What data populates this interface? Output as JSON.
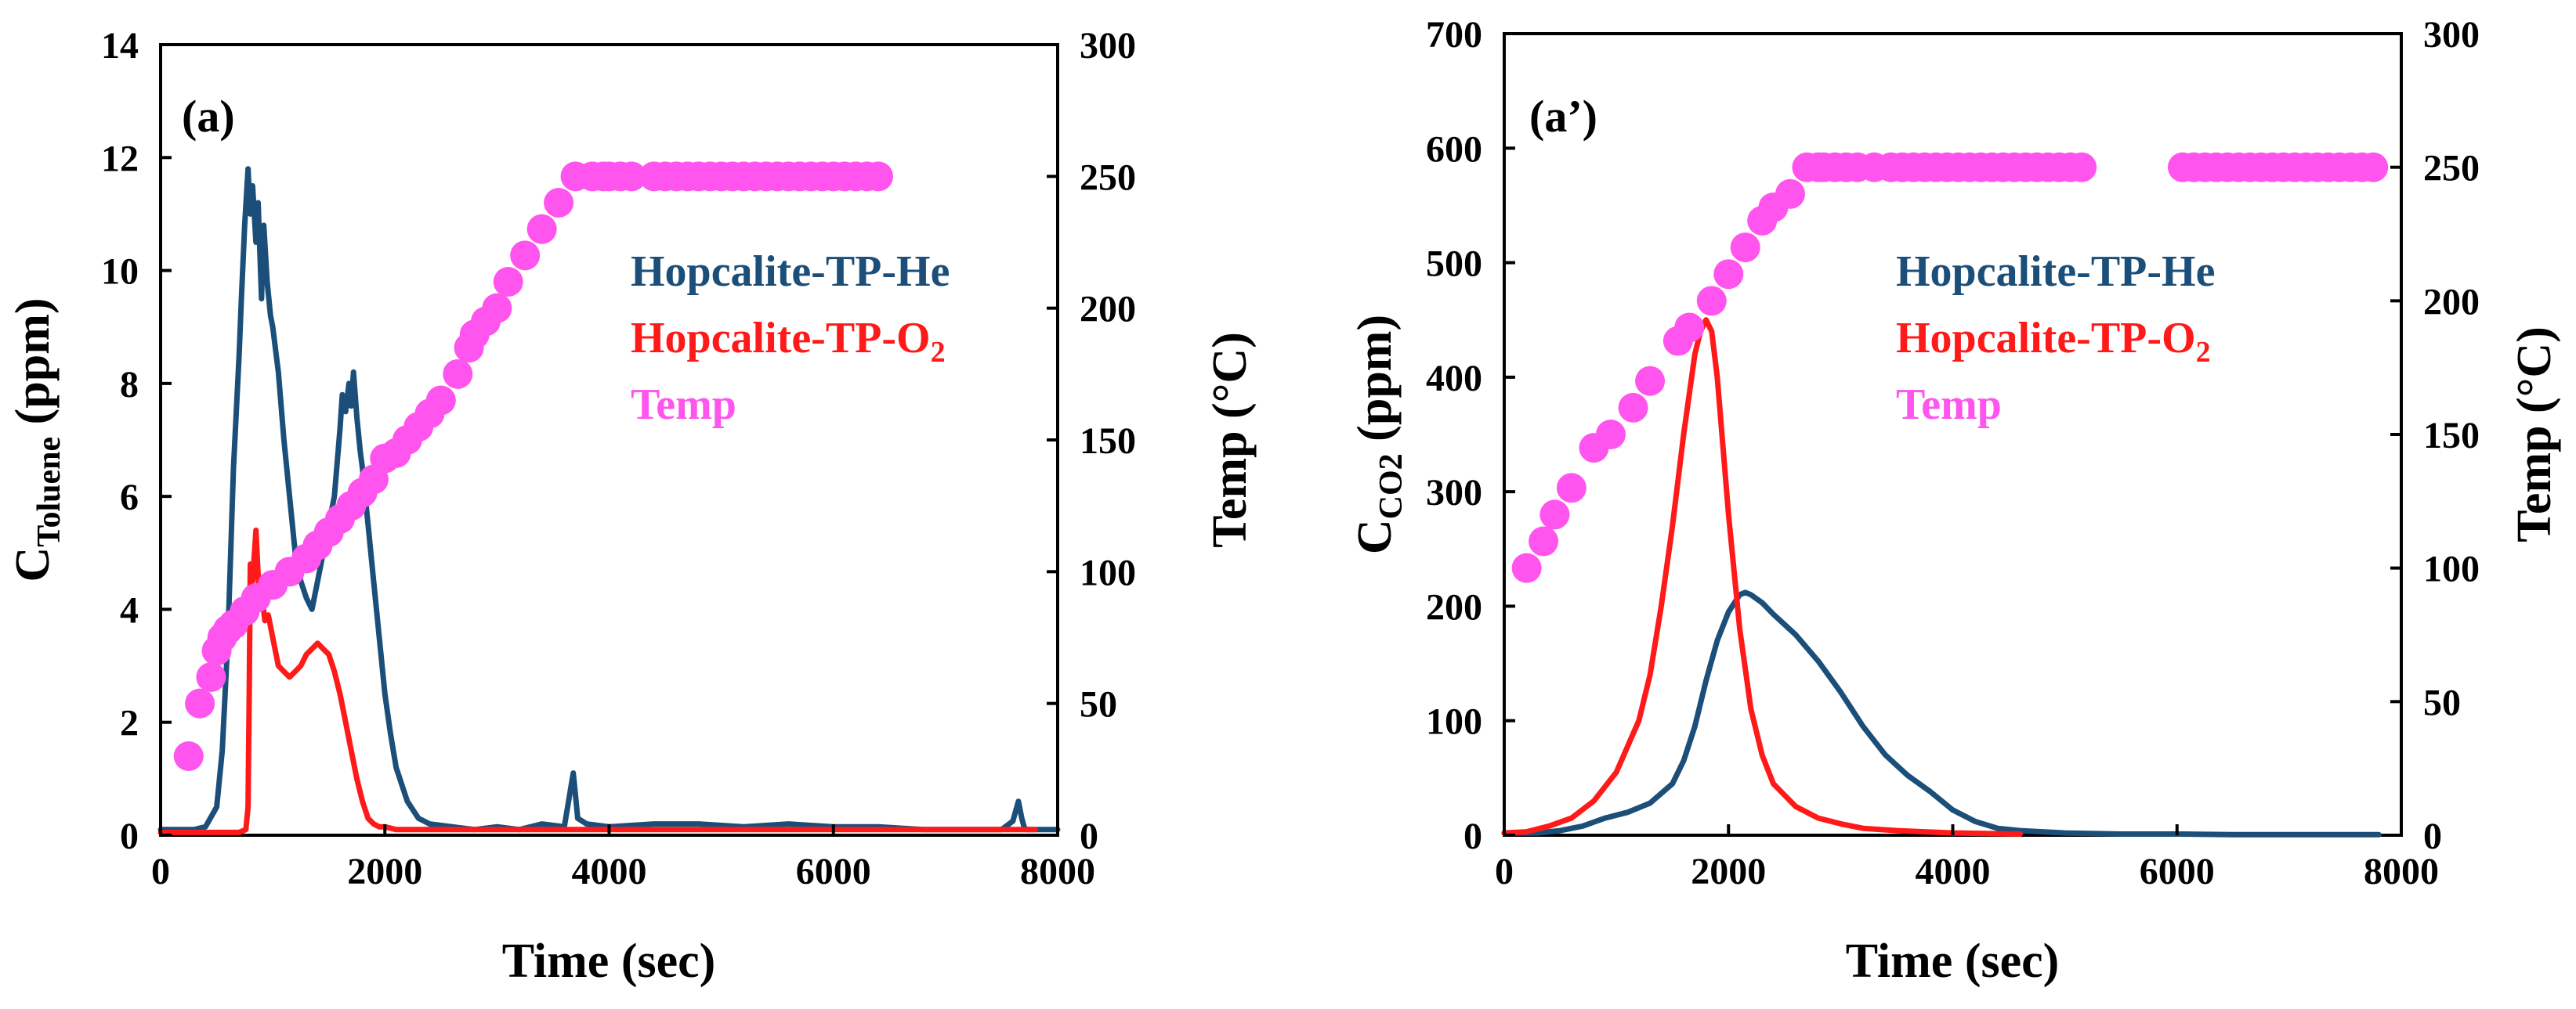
{
  "colors": {
    "he": "#1b4f7a",
    "o2": "#ff1a1a",
    "temp": "#ff55ee",
    "axis": "#000000"
  },
  "chart_data": [
    {
      "type": "line",
      "panel_label": "(a)",
      "xlabel": "Time (sec)",
      "ylabel_main": "C",
      "ylabel_sub": "Toluene",
      "ylabel_unit": " (ppm)",
      "y2label": "Temp (°C)",
      "xlim": [
        0,
        8000
      ],
      "ylim": [
        0,
        14
      ],
      "y2lim": [
        0,
        300
      ],
      "xticks": [
        "0",
        "2000",
        "4000",
        "6000",
        "8000"
      ],
      "yticks": [
        "0",
        "2",
        "4",
        "6",
        "8",
        "10",
        "12",
        "14"
      ],
      "y2ticks": [
        "0",
        "50",
        "100",
        "150",
        "200",
        "250",
        "300"
      ],
      "legend": {
        "he": "Hopcalite-TP-He",
        "o2_main": "Hopcalite-TP-O",
        "o2_sub": "2",
        "temp": "Temp"
      },
      "series": [
        {
          "name": "Hopcalite-TP-He",
          "color_key": "he",
          "x": [
            0,
            150,
            300,
            400,
            500,
            550,
            600,
            650,
            700,
            720,
            750,
            780,
            800,
            820,
            850,
            870,
            900,
            920,
            950,
            980,
            1000,
            1050,
            1100,
            1150,
            1200,
            1250,
            1300,
            1350,
            1400,
            1450,
            1500,
            1550,
            1600,
            1620,
            1650,
            1680,
            1700,
            1720,
            1750,
            1780,
            1800,
            1850,
            1900,
            1950,
            2000,
            2050,
            2100,
            2200,
            2300,
            2400,
            2600,
            2800,
            3000,
            3200,
            3400,
            3600,
            3680,
            3700,
            3720,
            3800,
            4000,
            4400,
            4800,
            5200,
            5600,
            6000,
            6400,
            6800,
            7200,
            7500,
            7600,
            7650,
            7680,
            7700,
            7720,
            7800,
            8000
          ],
          "y": [
            0.1,
            0.1,
            0.1,
            0.15,
            0.5,
            1.5,
            3.5,
            6.5,
            8.5,
            9.5,
            10.8,
            11.8,
            11.0,
            11.5,
            10.5,
            11.2,
            9.5,
            10.8,
            9.8,
            9.2,
            9.0,
            8.2,
            7.0,
            6.0,
            5.0,
            4.5,
            4.2,
            4.0,
            4.5,
            5.0,
            5.5,
            6.0,
            7.2,
            7.8,
            7.5,
            8.0,
            7.6,
            8.2,
            7.4,
            6.8,
            6.5,
            5.5,
            4.5,
            3.5,
            2.5,
            1.8,
            1.2,
            0.6,
            0.3,
            0.2,
            0.15,
            0.1,
            0.15,
            0.1,
            0.2,
            0.15,
            1.1,
            0.7,
            0.3,
            0.2,
            0.15,
            0.2,
            0.2,
            0.15,
            0.2,
            0.15,
            0.15,
            0.1,
            0.1,
            0.1,
            0.25,
            0.6,
            0.3,
            0.15,
            0.1,
            0.1,
            0.1
          ]
        },
        {
          "name": "Hopcalite-TP-O2",
          "color_key": "o2",
          "x": [
            0,
            700,
            760,
            780,
            790,
            800,
            820,
            850,
            880,
            900,
            930,
            960,
            1000,
            1050,
            1100,
            1150,
            1200,
            1250,
            1300,
            1350,
            1400,
            1450,
            1500,
            1550,
            1600,
            1650,
            1700,
            1750,
            1800,
            1850,
            1900,
            1950,
            2000,
            2100,
            2500,
            3000,
            4000,
            5000,
            6000,
            7000,
            7800
          ],
          "y": [
            0.05,
            0.05,
            0.1,
            0.5,
            2.5,
            4.8,
            4.5,
            5.4,
            4.2,
            4.3,
            3.8,
            3.9,
            3.5,
            3.0,
            2.9,
            2.8,
            2.9,
            3.0,
            3.2,
            3.3,
            3.4,
            3.3,
            3.2,
            2.9,
            2.5,
            2.0,
            1.5,
            1.0,
            0.6,
            0.3,
            0.2,
            0.15,
            0.15,
            0.1,
            0.1,
            0.1,
            0.1,
            0.1,
            0.1,
            0.1,
            0.1
          ]
        },
        {
          "name": "Temp",
          "color_key": "temp",
          "axis": "y2",
          "marker": "circle",
          "x": [
            250,
            350,
            450,
            500,
            550,
            600,
            650,
            750,
            850,
            1000,
            1150,
            1300,
            1400,
            1500,
            1600,
            1700,
            1800,
            1900,
            2000,
            2100,
            2200,
            2300,
            2400,
            2500,
            2650,
            2750,
            2800,
            2900,
            3000,
            3100,
            3250,
            3400,
            3550,
            3700,
            3850,
            3950,
            4000,
            4100,
            4200,
            4400,
            4500,
            4600,
            4700,
            4800,
            4900,
            5000,
            5100,
            5200,
            5300,
            5400,
            5500,
            5600,
            5700,
            5800,
            5900,
            6000,
            6100,
            6200,
            6300,
            6400
          ],
          "y": [
            30,
            50,
            60,
            70,
            75,
            78,
            80,
            85,
            90,
            95,
            100,
            105,
            110,
            115,
            120,
            125,
            130,
            135,
            143,
            145,
            150,
            155,
            160,
            165,
            175,
            185,
            190,
            195,
            200,
            210,
            220,
            230,
            240,
            250,
            250,
            250,
            250,
            250,
            250,
            250,
            250,
            250,
            250,
            250,
            250,
            250,
            250,
            250,
            250,
            250,
            250,
            250,
            250,
            250,
            250,
            250,
            250,
            250,
            250,
            250
          ]
        }
      ]
    },
    {
      "type": "line",
      "panel_label": "(a’)",
      "xlabel": "Time (sec)",
      "ylabel_main": "C",
      "ylabel_sub": "CO2",
      "ylabel_unit": " (ppm)",
      "y2label": "Temp (°C)",
      "xlim": [
        0,
        8000
      ],
      "ylim": [
        0,
        700
      ],
      "y2lim": [
        0,
        300
      ],
      "xticks": [
        "0",
        "2000",
        "4000",
        "6000",
        "8000"
      ],
      "yticks": [
        "0",
        "100",
        "200",
        "300",
        "400",
        "500",
        "600",
        "700"
      ],
      "y2ticks": [
        "0",
        "50",
        "100",
        "150",
        "200",
        "250",
        "300"
      ],
      "legend": {
        "he": "Hopcalite-TP-He",
        "o2_main": "Hopcalite-TP-O",
        "o2_sub": "2",
        "temp": "Temp"
      },
      "series": [
        {
          "name": "Hopcalite-TP-He",
          "color_key": "he",
          "x": [
            0,
            300,
            500,
            700,
            900,
            1100,
            1300,
            1500,
            1600,
            1700,
            1800,
            1900,
            2000,
            2100,
            2150,
            2200,
            2300,
            2400,
            2600,
            2800,
            3000,
            3200,
            3400,
            3600,
            3800,
            4000,
            4200,
            4400,
            4600,
            5000,
            5500,
            6000,
            6500,
            7000,
            7800
          ],
          "y": [
            2,
            2,
            4,
            8,
            15,
            20,
            28,
            45,
            65,
            95,
            135,
            170,
            195,
            210,
            212,
            210,
            203,
            193,
            175,
            152,
            125,
            95,
            70,
            52,
            38,
            22,
            12,
            6,
            4,
            2,
            1,
            1,
            0.5,
            0.5,
            0.5
          ]
        },
        {
          "name": "Hopcalite-TP-O2",
          "color_key": "o2",
          "x": [
            0,
            200,
            400,
            600,
            800,
            1000,
            1200,
            1300,
            1400,
            1500,
            1600,
            1700,
            1750,
            1800,
            1850,
            1900,
            2000,
            2100,
            2200,
            2300,
            2400,
            2600,
            2800,
            3000,
            3200,
            3500,
            4000,
            4600
          ],
          "y": [
            2,
            3,
            8,
            15,
            30,
            55,
            100,
            140,
            200,
            270,
            350,
            420,
            440,
            450,
            440,
            400,
            280,
            180,
            110,
            70,
            45,
            25,
            15,
            10,
            6,
            4,
            2,
            1
          ]
        },
        {
          "name": "Temp",
          "color_key": "temp",
          "axis": "y2",
          "marker": "circle",
          "x": [
            200,
            350,
            450,
            600,
            800,
            950,
            1150,
            1300,
            1550,
            1650,
            1850,
            2000,
            2150,
            2300,
            2400,
            2550,
            2700,
            2800,
            2850,
            2950,
            3050,
            3150,
            3300,
            3450,
            3550,
            3650,
            3750,
            3850,
            3950,
            4050,
            4150,
            4250,
            4350,
            4450,
            4550,
            4650,
            4750,
            4850,
            4950,
            5050,
            5150,
            6050,
            6150,
            6250,
            6350,
            6450,
            6550,
            6650,
            6750,
            6850,
            6950,
            7050,
            7150,
            7250,
            7350,
            7450,
            7550,
            7650,
            7750
          ],
          "y": [
            100,
            110,
            120,
            130,
            145,
            150,
            160,
            170,
            185,
            190,
            200,
            210,
            220,
            230,
            235,
            240,
            250,
            250,
            250,
            250,
            250,
            250,
            250,
            250,
            250,
            250,
            250,
            250,
            250,
            250,
            250,
            250,
            250,
            250,
            250,
            250,
            250,
            250,
            250,
            250,
            250,
            250,
            250,
            250,
            250,
            250,
            250,
            250,
            250,
            250,
            250,
            250,
            250,
            250,
            250,
            250,
            250,
            250,
            250
          ]
        }
      ]
    }
  ]
}
